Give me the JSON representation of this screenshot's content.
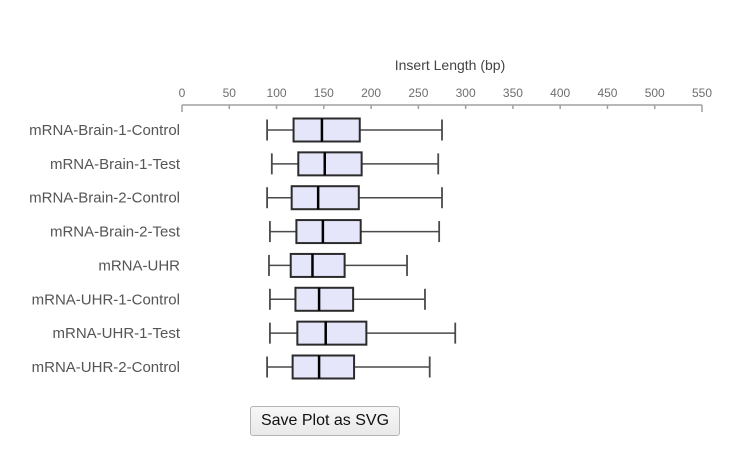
{
  "chart_data": {
    "type": "boxplot",
    "orientation": "horizontal",
    "title": "Insert Length (bp)",
    "axis": {
      "position": "top",
      "min": 0,
      "max": 550,
      "tick_step": 50,
      "tick_labels": [
        "0",
        "50",
        "100",
        "150",
        "200",
        "250",
        "300",
        "350",
        "400",
        "450",
        "500",
        "550"
      ]
    },
    "categories": [
      "mRNA-Brain-1-Control",
      "mRNA-Brain-1-Test",
      "mRNA-Brain-2-Control",
      "mRNA-Brain-2-Test",
      "mRNA-UHR",
      "mRNA-UHR-1-Control",
      "mRNA-UHR-1-Test",
      "mRNA-UHR-2-Control"
    ],
    "series": [
      {
        "name": "mRNA-Brain-1-Control",
        "whisker_low": 90,
        "q1": 118,
        "median": 148,
        "q3": 188,
        "whisker_high": 275
      },
      {
        "name": "mRNA-Brain-1-Test",
        "whisker_low": 95,
        "q1": 123,
        "median": 151,
        "q3": 190,
        "whisker_high": 271
      },
      {
        "name": "mRNA-Brain-2-Control",
        "whisker_low": 90,
        "q1": 116,
        "median": 144,
        "q3": 187,
        "whisker_high": 275
      },
      {
        "name": "mRNA-Brain-2-Test",
        "whisker_low": 93,
        "q1": 121,
        "median": 149,
        "q3": 189,
        "whisker_high": 272
      },
      {
        "name": "mRNA-UHR",
        "whisker_low": 92,
        "q1": 115,
        "median": 138,
        "q3": 172,
        "whisker_high": 238
      },
      {
        "name": "mRNA-UHR-1-Control",
        "whisker_low": 93,
        "q1": 120,
        "median": 145,
        "q3": 181,
        "whisker_high": 257
      },
      {
        "name": "mRNA-UHR-1-Test",
        "whisker_low": 93,
        "q1": 122,
        "median": 152,
        "q3": 195,
        "whisker_high": 289
      },
      {
        "name": "mRNA-UHR-2-Control",
        "whisker_low": 90,
        "q1": 117,
        "median": 145,
        "q3": 182,
        "whisker_high": 262
      }
    ],
    "grid": false,
    "legend": "none"
  },
  "button": {
    "label": "Save Plot as SVG"
  },
  "colors": {
    "box_fill": "#e6e6fa",
    "box_border": "#2b2b2b",
    "median": "#000000",
    "whisker": "#4a4a4a",
    "axis": "#a0a0a0",
    "tick_label": "#6e6e6e",
    "title": "#444444",
    "category_label": "#555555"
  }
}
